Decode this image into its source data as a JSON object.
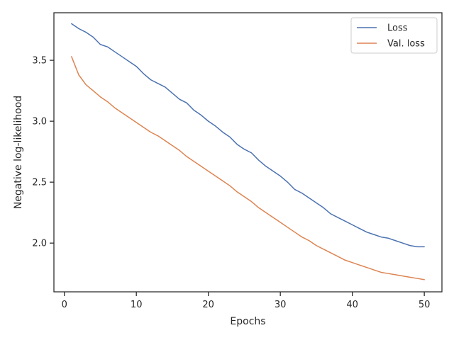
{
  "chart_data": {
    "type": "line",
    "xlabel": "Epochs",
    "ylabel": "Negative log-likelihood",
    "xlim": [
      -1.45,
      52.45
    ],
    "ylim": [
      1.6,
      3.89
    ],
    "xticks": [
      0,
      10,
      20,
      30,
      40,
      50
    ],
    "yticks": [
      2.0,
      2.5,
      3.0,
      3.5
    ],
    "xtick_labels": [
      "0",
      "10",
      "20",
      "30",
      "40",
      "50"
    ],
    "ytick_labels": [
      "2.0",
      "2.5",
      "3.0",
      "3.5"
    ],
    "grid": false,
    "legend": "top-right",
    "x": [
      1,
      2,
      3,
      4,
      5,
      6,
      7,
      8,
      9,
      10,
      11,
      12,
      13,
      14,
      15,
      16,
      17,
      18,
      19,
      20,
      21,
      22,
      23,
      24,
      25,
      26,
      27,
      28,
      29,
      30,
      31,
      32,
      33,
      34,
      35,
      36,
      37,
      38,
      39,
      40,
      41,
      42,
      43,
      44,
      45,
      46,
      47,
      48,
      49,
      50
    ],
    "series": [
      {
        "name": "Loss",
        "color": "#4c72b0",
        "values": [
          3.8,
          3.76,
          3.73,
          3.69,
          3.63,
          3.61,
          3.57,
          3.53,
          3.49,
          3.45,
          3.39,
          3.34,
          3.31,
          3.28,
          3.23,
          3.18,
          3.15,
          3.09,
          3.05,
          3.0,
          2.96,
          2.91,
          2.87,
          2.81,
          2.77,
          2.74,
          2.68,
          2.63,
          2.59,
          2.55,
          2.5,
          2.44,
          2.41,
          2.37,
          2.33,
          2.29,
          2.24,
          2.21,
          2.18,
          2.15,
          2.12,
          2.09,
          2.07,
          2.05,
          2.04,
          2.02,
          2.0,
          1.98,
          1.97,
          1.97
        ]
      },
      {
        "name": "Val. loss",
        "color": "#dd8452",
        "values": [
          3.53,
          3.38,
          3.3,
          3.25,
          3.2,
          3.16,
          3.11,
          3.07,
          3.03,
          2.99,
          2.95,
          2.91,
          2.88,
          2.84,
          2.8,
          2.76,
          2.71,
          2.67,
          2.63,
          2.59,
          2.55,
          2.51,
          2.47,
          2.42,
          2.38,
          2.34,
          2.29,
          2.25,
          2.21,
          2.17,
          2.13,
          2.09,
          2.05,
          2.02,
          1.98,
          1.95,
          1.92,
          1.89,
          1.86,
          1.84,
          1.82,
          1.8,
          1.78,
          1.76,
          1.75,
          1.74,
          1.73,
          1.72,
          1.71,
          1.7
        ]
      }
    ]
  }
}
